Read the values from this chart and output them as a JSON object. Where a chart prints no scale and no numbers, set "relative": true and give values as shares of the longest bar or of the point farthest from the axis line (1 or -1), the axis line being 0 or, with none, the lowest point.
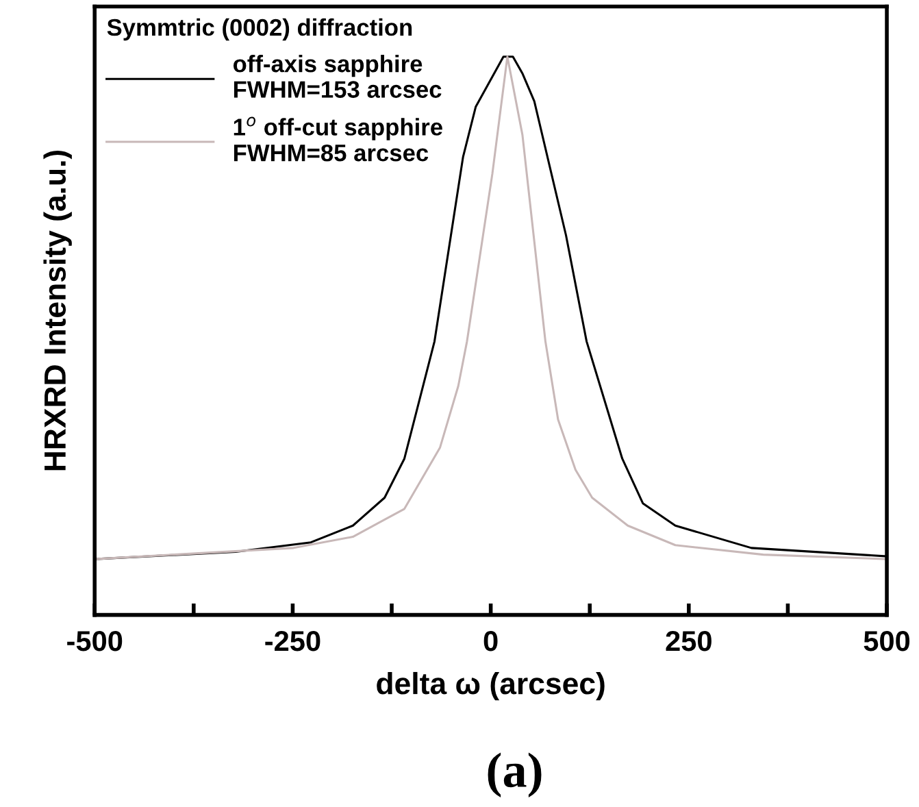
{
  "chart_data": {
    "type": "line",
    "relative": true,
    "xlabel": "delta ω (arcsec)",
    "ylabel": "HRXRD Intensity (a.u.)",
    "legend_title": "Symmtric (0002) diffraction",
    "legend": "top left",
    "annotations": [
      "(a)"
    ],
    "xlim": [
      -500,
      500
    ],
    "xticks": [
      -500,
      {
        "value": -375,
        "label": null
      },
      -250,
      {
        "value": -125,
        "label": null
      },
      0,
      {
        "value": 125,
        "label": null
      },
      250,
      {
        "value": 375,
        "label": null
      },
      500
    ],
    "grid": false,
    "marker": "none",
    "line_style": "solid",
    "series": [
      {
        "name": "off-axis sapphire\nFWHM=153 arcsec",
        "color": "#000000",
        "x": [
          -500,
          -322,
          -227,
          -174,
          -134,
          -109,
          -71,
          -35,
          -19,
          16,
          28,
          40,
          55,
          95,
          121,
          166,
          192,
          233,
          329,
          500
        ],
        "values": [
          0.1,
          0.113,
          0.13,
          0.16,
          0.21,
          0.28,
          0.49,
          0.82,
          0.91,
          1.0,
          1.0,
          0.97,
          0.92,
          0.68,
          0.49,
          0.28,
          0.2,
          0.16,
          0.12,
          0.105
        ]
      },
      {
        "name": "1$^{o}$ off-cut sapphire\nFWHM=85 arcsec",
        "color": "#c8b8b8",
        "x": [
          -500,
          -249,
          -174,
          -109,
          -64,
          -41,
          -30,
          2,
          21,
          40,
          69,
          85,
          107,
          128,
          173,
          233,
          344,
          500
        ],
        "values": [
          0.1,
          0.12,
          0.14,
          0.19,
          0.3,
          0.41,
          0.49,
          0.79,
          1.0,
          0.86,
          0.49,
          0.35,
          0.26,
          0.21,
          0.16,
          0.125,
          0.108,
          0.1
        ]
      }
    ]
  }
}
